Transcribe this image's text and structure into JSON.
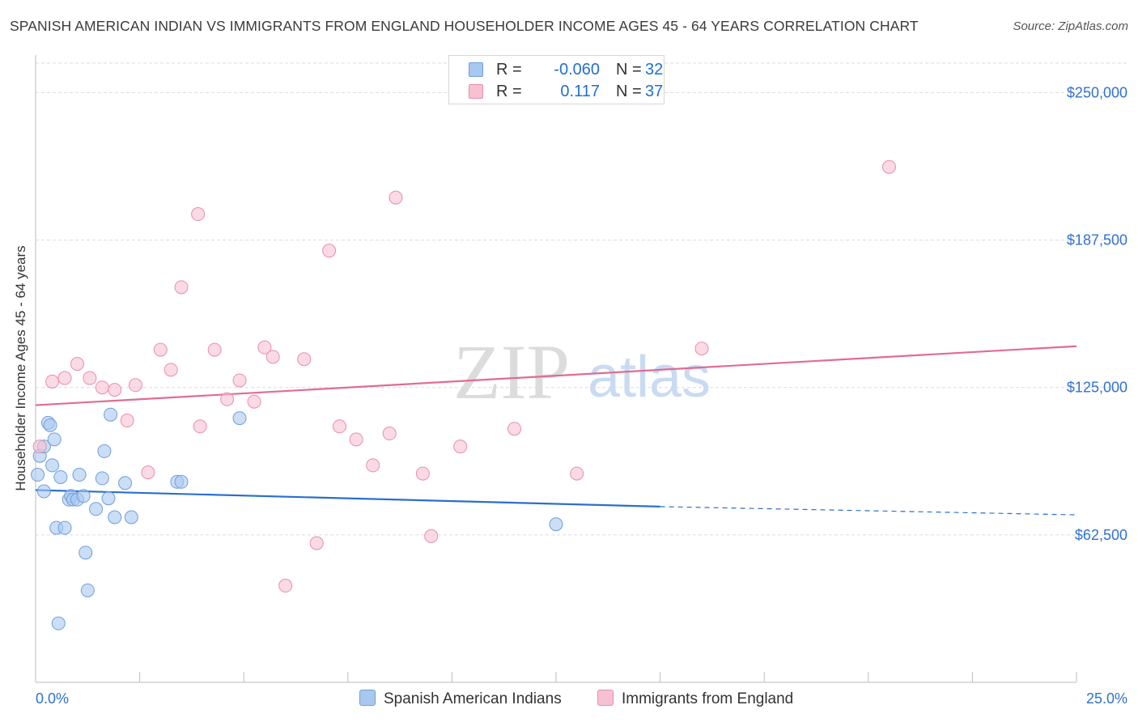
{
  "title": "SPANISH AMERICAN INDIAN VS IMMIGRANTS FROM ENGLAND HOUSEHOLDER INCOME AGES 45 - 64 YEARS CORRELATION CHART",
  "source": "Source: ZipAtlas.com",
  "watermark": {
    "zip": "ZIP",
    "atlas": "atlas"
  },
  "legend": {
    "rows": [
      {
        "r_label": "R =",
        "r_value": "-0.060",
        "n_label": "N =",
        "n_value": "32",
        "color": "#a9c8f0",
        "border": "#6d9fdc"
      },
      {
        "r_label": "R =",
        "r_value": "0.117",
        "n_label": "N =",
        "n_value": "37",
        "color": "#f7c1d2",
        "border": "#e88fab"
      }
    ]
  },
  "bottom_legend": [
    {
      "label": "Spanish American Indians",
      "color": "#a9c8f0",
      "border": "#6d9fdc"
    },
    {
      "label": "Immigrants from England",
      "color": "#f7c1d2",
      "border": "#e88fab"
    }
  ],
  "chart_data": {
    "type": "scatter",
    "title": "SPANISH AMERICAN INDIAN VS IMMIGRANTS FROM ENGLAND HOUSEHOLDER INCOME AGES 45 - 64 YEARS CORRELATION CHART",
    "xlabel": "",
    "ylabel": "Householder Income Ages 45 - 64 years",
    "xlim": [
      0,
      25
    ],
    "ylim": [
      0,
      262500
    ],
    "x_tick_labels": [
      "0.0%",
      "25.0%"
    ],
    "y_ticks": [
      62500,
      125000,
      187500,
      250000
    ],
    "y_tick_labels": [
      "$62,500",
      "$125,000",
      "$187,500",
      "$250,000"
    ],
    "grid": true,
    "legend_position": "top-center",
    "series": [
      {
        "name": "Spanish American Indians",
        "color": "#a9c8f0",
        "stroke": "#6d9fdc",
        "line_color": "#2b6fcc",
        "trend": {
          "x": [
            0,
            15
          ],
          "y": [
            81500,
            74500
          ],
          "dashed_to": [
            25,
            71000
          ]
        },
        "points": [
          [
            0.05,
            88000
          ],
          [
            0.1,
            96000
          ],
          [
            0.2,
            81000
          ],
          [
            0.2,
            100000
          ],
          [
            0.3,
            110000
          ],
          [
            0.35,
            109000
          ],
          [
            0.4,
            92000
          ],
          [
            0.45,
            103000
          ],
          [
            0.5,
            65500
          ],
          [
            0.55,
            25000
          ],
          [
            0.6,
            87000
          ],
          [
            0.7,
            65500
          ],
          [
            0.8,
            77500
          ],
          [
            0.85,
            79000
          ],
          [
            0.9,
            77500
          ],
          [
            1.0,
            77500
          ],
          [
            1.05,
            88000
          ],
          [
            1.15,
            79000
          ],
          [
            1.2,
            55000
          ],
          [
            1.25,
            39000
          ],
          [
            1.45,
            73500
          ],
          [
            1.6,
            86500
          ],
          [
            1.65,
            98000
          ],
          [
            1.75,
            78000
          ],
          [
            1.8,
            113500
          ],
          [
            1.9,
            70000
          ],
          [
            2.15,
            84500
          ],
          [
            2.3,
            70000
          ],
          [
            3.4,
            85000
          ],
          [
            3.5,
            85000
          ],
          [
            4.9,
            112000
          ],
          [
            12.5,
            67000
          ]
        ]
      },
      {
        "name": "Immigrants from England",
        "color": "#f7c1d2",
        "stroke": "#e88fab",
        "line_color": "#e06c93",
        "trend": {
          "x": [
            0,
            25
          ],
          "y": [
            117500,
            142500
          ]
        },
        "points": [
          [
            0.1,
            100000
          ],
          [
            0.4,
            127500
          ],
          [
            0.7,
            129000
          ],
          [
            1.0,
            135000
          ],
          [
            1.3,
            129000
          ],
          [
            1.6,
            125000
          ],
          [
            1.9,
            124000
          ],
          [
            2.2,
            111000
          ],
          [
            2.4,
            126000
          ],
          [
            2.7,
            89000
          ],
          [
            3.0,
            141000
          ],
          [
            3.25,
            132500
          ],
          [
            3.5,
            167500
          ],
          [
            3.9,
            198500
          ],
          [
            3.95,
            108500
          ],
          [
            4.3,
            141000
          ],
          [
            4.6,
            120000
          ],
          [
            4.9,
            128000
          ],
          [
            5.25,
            119000
          ],
          [
            5.5,
            142000
          ],
          [
            5.7,
            138000
          ],
          [
            6.0,
            41000
          ],
          [
            6.45,
            137000
          ],
          [
            6.75,
            59000
          ],
          [
            7.05,
            183000
          ],
          [
            7.3,
            108500
          ],
          [
            7.7,
            103000
          ],
          [
            8.1,
            92000
          ],
          [
            8.5,
            105500
          ],
          [
            8.65,
            205500
          ],
          [
            9.3,
            88500
          ],
          [
            9.5,
            62000
          ],
          [
            10.2,
            100000
          ],
          [
            11.5,
            107500
          ],
          [
            13.0,
            88500
          ],
          [
            16.0,
            141500
          ],
          [
            20.5,
            218500
          ]
        ]
      }
    ]
  }
}
